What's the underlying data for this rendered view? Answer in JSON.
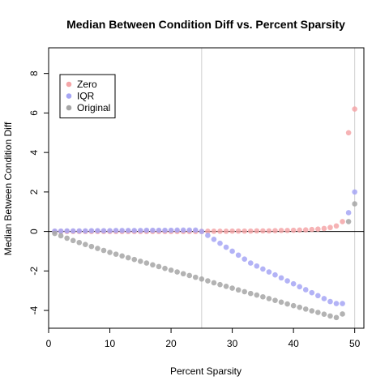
{
  "chart_data": {
    "type": "scatter",
    "title": "Median Between Condition Diff  vs. Percent Sparsity",
    "xlabel": "Percent Sparsity",
    "ylabel": "Median Between Condition Diff",
    "xlim": [
      0,
      51.5
    ],
    "ylim": [
      -4.9,
      9.3
    ],
    "xticks": [
      0,
      10,
      20,
      30,
      40,
      50
    ],
    "yticks": [
      -4,
      -2,
      0,
      2,
      4,
      6,
      8
    ],
    "reference_lines": {
      "horizontal": [
        0
      ],
      "vertical": [
        25,
        50
      ]
    },
    "legend_position": "top-left",
    "series": [
      {
        "name": "Zero",
        "color": "#f4a6a8",
        "x": [
          1,
          2,
          3,
          4,
          5,
          6,
          7,
          8,
          9,
          10,
          11,
          12,
          13,
          14,
          15,
          16,
          17,
          18,
          19,
          20,
          21,
          22,
          23,
          24,
          25,
          26,
          27,
          28,
          29,
          30,
          31,
          32,
          33,
          34,
          35,
          36,
          37,
          38,
          39,
          40,
          41,
          42,
          43,
          44,
          45,
          46,
          47,
          48,
          49,
          50
        ],
        "y": [
          0,
          0,
          0,
          0,
          0,
          0,
          0,
          0,
          0,
          0,
          0,
          0,
          0,
          0,
          0,
          0,
          0,
          0,
          0,
          0,
          0,
          0,
          0,
          0,
          0,
          0.01,
          0.01,
          0.01,
          0.01,
          0.02,
          0.02,
          0.02,
          0.02,
          0.03,
          0.03,
          0.03,
          0.04,
          0.05,
          0.05,
          0.06,
          0.07,
          0.08,
          0.1,
          0.12,
          0.15,
          0.2,
          0.28,
          0.5,
          5.0,
          6.2
        ]
      },
      {
        "name": "IQR",
        "color": "#a6a6f4",
        "x": [
          1,
          2,
          3,
          4,
          5,
          6,
          7,
          8,
          9,
          10,
          11,
          12,
          13,
          14,
          15,
          16,
          17,
          18,
          19,
          20,
          21,
          22,
          23,
          24,
          25,
          26,
          27,
          28,
          29,
          30,
          31,
          32,
          33,
          34,
          35,
          36,
          37,
          38,
          39,
          40,
          41,
          42,
          43,
          44,
          45,
          46,
          47,
          48,
          49,
          50
        ],
        "y": [
          0.02,
          0.02,
          0.03,
          0.03,
          0.03,
          0.03,
          0.04,
          0.04,
          0.04,
          0.04,
          0.05,
          0.05,
          0.05,
          0.05,
          0.05,
          0.06,
          0.06,
          0.06,
          0.06,
          0.06,
          0.07,
          0.07,
          0.07,
          0.07,
          0,
          -0.2,
          -0.4,
          -0.6,
          -0.8,
          -1.0,
          -1.2,
          -1.4,
          -1.6,
          -1.75,
          -1.9,
          -2.05,
          -2.2,
          -2.35,
          -2.5,
          -2.65,
          -2.8,
          -2.95,
          -3.1,
          -3.25,
          -3.4,
          -3.55,
          -3.65,
          -3.65,
          0.95,
          2.0
        ]
      },
      {
        "name": "Original",
        "color": "#a6a6a6",
        "x": [
          1,
          2,
          3,
          4,
          5,
          6,
          7,
          8,
          9,
          10,
          11,
          12,
          13,
          14,
          15,
          16,
          17,
          18,
          19,
          20,
          21,
          22,
          23,
          24,
          25,
          26,
          27,
          28,
          29,
          30,
          31,
          32,
          33,
          34,
          35,
          36,
          37,
          38,
          39,
          40,
          41,
          42,
          43,
          44,
          45,
          46,
          47,
          48,
          49,
          50
        ],
        "y": [
          -0.1,
          -0.22,
          -0.34,
          -0.46,
          -0.56,
          -0.66,
          -0.76,
          -0.86,
          -0.96,
          -1.06,
          -1.15,
          -1.24,
          -1.33,
          -1.42,
          -1.51,
          -1.6,
          -1.69,
          -1.78,
          -1.87,
          -1.96,
          -2.05,
          -2.14,
          -2.23,
          -2.32,
          -2.41,
          -2.5,
          -2.6,
          -2.69,
          -2.78,
          -2.87,
          -2.96,
          -3.05,
          -3.14,
          -3.22,
          -3.31,
          -3.4,
          -3.49,
          -3.58,
          -3.67,
          -3.76,
          -3.84,
          -3.93,
          -4.02,
          -4.1,
          -4.19,
          -4.28,
          -4.36,
          -4.18,
          0.5,
          1.4
        ]
      }
    ]
  }
}
